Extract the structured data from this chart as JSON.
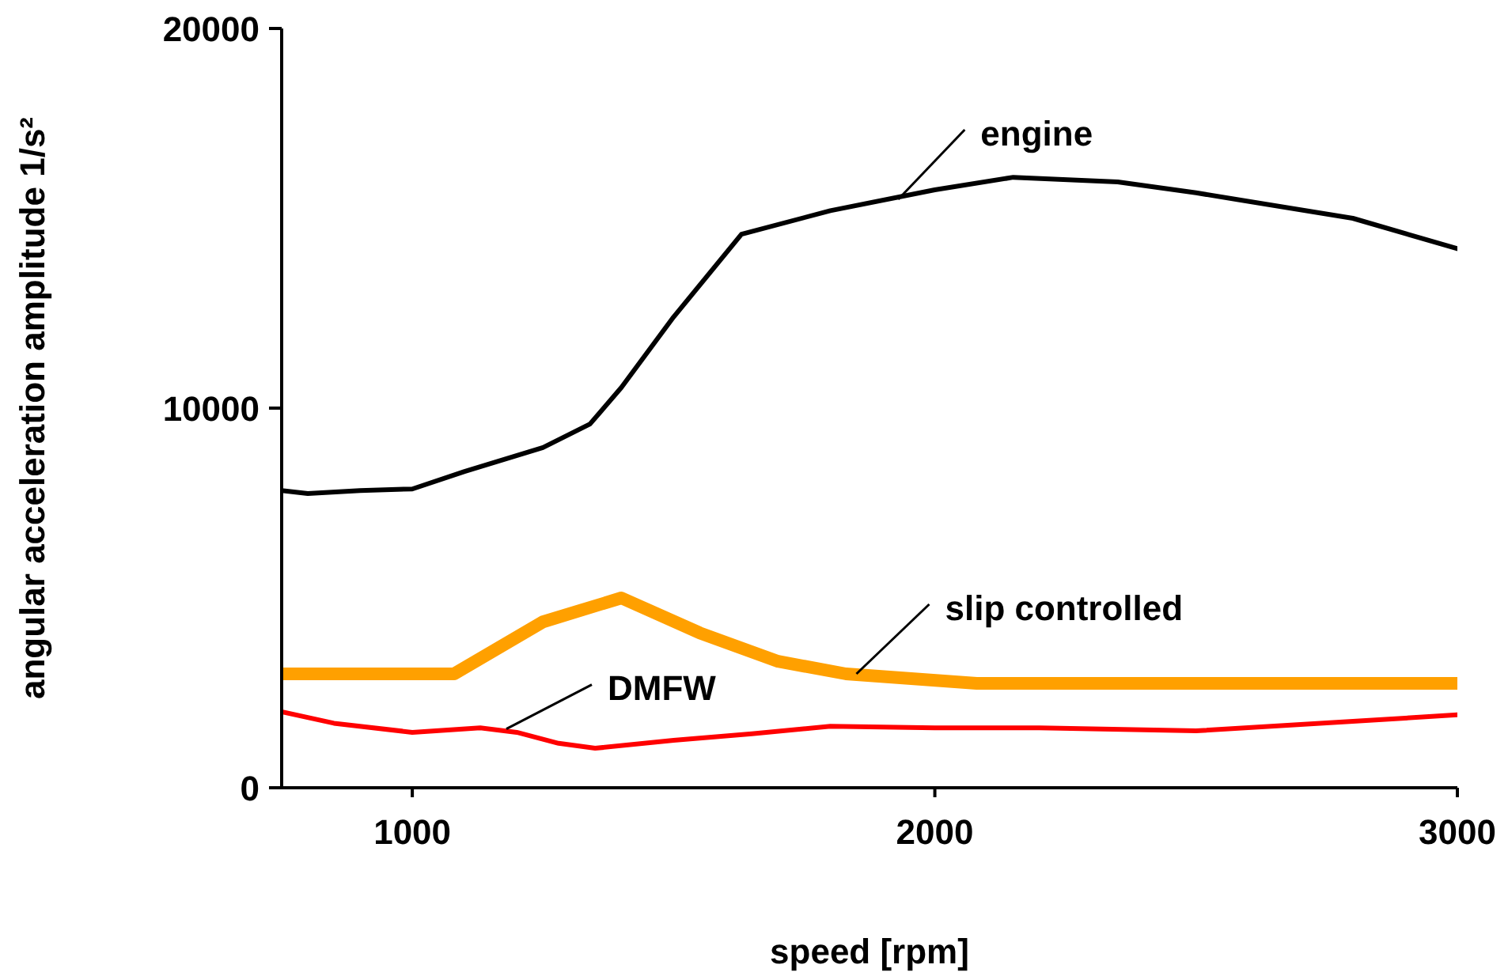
{
  "chart_data": {
    "type": "line",
    "xlabel": "speed [rpm]",
    "ylabel": "angular acceleration amplitude 1/s²",
    "xlim": [
      750,
      3000
    ],
    "xticks": [
      1000,
      2000,
      3000
    ],
    "ylim": [
      0,
      20000
    ],
    "yticks": [
      0,
      10000,
      20000
    ],
    "grid": false,
    "legend": false,
    "marker": "none",
    "line_style": "solid",
    "annotations": [
      {
        "text": "engine",
        "x": 1930,
        "y": 15500
      },
      {
        "text": "slip controlled",
        "x": 1850,
        "y": 3000
      },
      {
        "text": "DMFW",
        "x": 1180,
        "y": 1550
      }
    ],
    "series": [
      {
        "color": "#000000",
        "x": [
          750,
          800,
          900,
          1000,
          1100,
          1250,
          1340,
          1400,
          1500,
          1630,
          1800,
          2000,
          2150,
          2350,
          2500,
          2800,
          3000
        ],
        "values": [
          7830,
          7750,
          7830,
          7870,
          8330,
          8960,
          9580,
          10540,
          12400,
          14580,
          15200,
          15750,
          16080,
          15960,
          15670,
          15000,
          14200
        ]
      },
      {
        "color": "#ffa000",
        "x": [
          750,
          1080,
          1250,
          1400,
          1550,
          1700,
          1830,
          2080,
          3000
        ],
        "values": [
          3000,
          3000,
          4370,
          5000,
          4080,
          3330,
          3000,
          2750,
          2750
        ]
      },
      {
        "color": "#ff0000",
        "x": [
          750,
          850,
          1000,
          1130,
          1200,
          1280,
          1350,
          1500,
          1650,
          1800,
          2000,
          2200,
          2500,
          2800,
          3000
        ],
        "values": [
          2000,
          1700,
          1460,
          1580,
          1460,
          1170,
          1040,
          1250,
          1420,
          1620,
          1580,
          1580,
          1500,
          1750,
          1920
        ]
      }
    ]
  }
}
